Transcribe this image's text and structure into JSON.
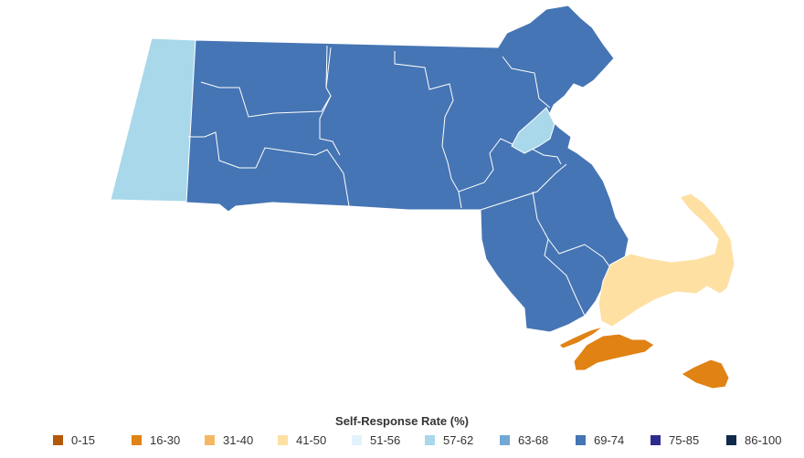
{
  "legend": {
    "title": "Self-Response Rate (%)",
    "items": [
      {
        "label": "0-15",
        "color": "#b35806"
      },
      {
        "label": "16-30",
        "color": "#e08214"
      },
      {
        "label": "31-40",
        "color": "#f5b862"
      },
      {
        "label": "41-50",
        "color": "#fee0a3"
      },
      {
        "label": "51-56",
        "color": "#e3f2fb"
      },
      {
        "label": "57-62",
        "color": "#a8d8ea"
      },
      {
        "label": "63-68",
        "color": "#72a8d6"
      },
      {
        "label": "69-74",
        "color": "#4575b4"
      },
      {
        "label": "75-85",
        "color": "#2d2c8e"
      },
      {
        "label": "86-100",
        "color": "#0f2a4a"
      }
    ]
  },
  "regions": [
    {
      "id": "western-county",
      "range": "57-62"
    },
    {
      "id": "central-counties",
      "range": "69-74"
    },
    {
      "id": "boston-area-county",
      "range": "57-62"
    },
    {
      "id": "cape-county",
      "range": "41-50"
    },
    {
      "id": "island-counties",
      "range": "16-30"
    }
  ]
}
